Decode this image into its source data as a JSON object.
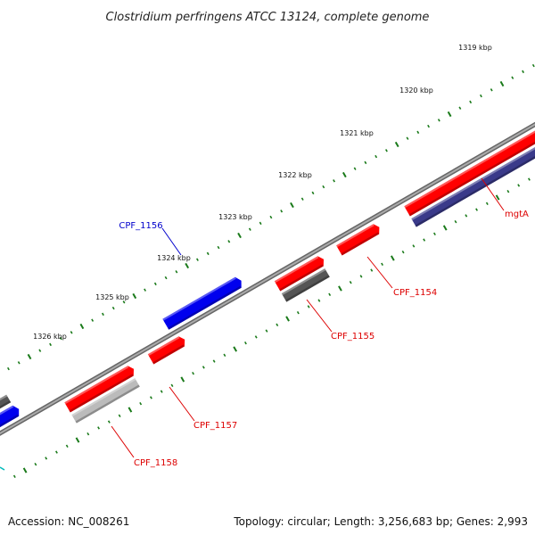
{
  "title": "Clostridium perfringens ATCC 13124, complete genome",
  "ticks": [
    {
      "label": "1319 kbp"
    },
    {
      "label": "1320 kbp"
    },
    {
      "label": "1321 kbp"
    },
    {
      "label": "1322 kbp"
    },
    {
      "label": "1323 kbp"
    },
    {
      "label": "1324 kbp"
    },
    {
      "label": "1325 kbp"
    },
    {
      "label": "1326 kbp"
    }
  ],
  "genes": [
    {
      "name": "mgtA",
      "color": "#dd0000"
    },
    {
      "name": "CPF_1154",
      "color": "#dd0000"
    },
    {
      "name": "CPF_1155",
      "color": "#dd0000"
    },
    {
      "name": "CPF_1156",
      "color": "#0000cc"
    },
    {
      "name": "CPF_1157",
      "color": "#dd0000"
    },
    {
      "name": "CPF_1158",
      "color": "#dd0000"
    }
  ],
  "colors": {
    "forward_cds": "#ff0000",
    "reverse_cds": "#0000ee",
    "other_dark": "#555555",
    "other_light": "#bbbbbb",
    "reverse_dark": "#3a3a8a",
    "backbone": "#888888",
    "tick": "#1a7a1a"
  },
  "footer": {
    "accession": "Accession: NC_008261",
    "topology": "Topology: circular; Length: 3,256,683 bp; Genes: 2,993"
  }
}
